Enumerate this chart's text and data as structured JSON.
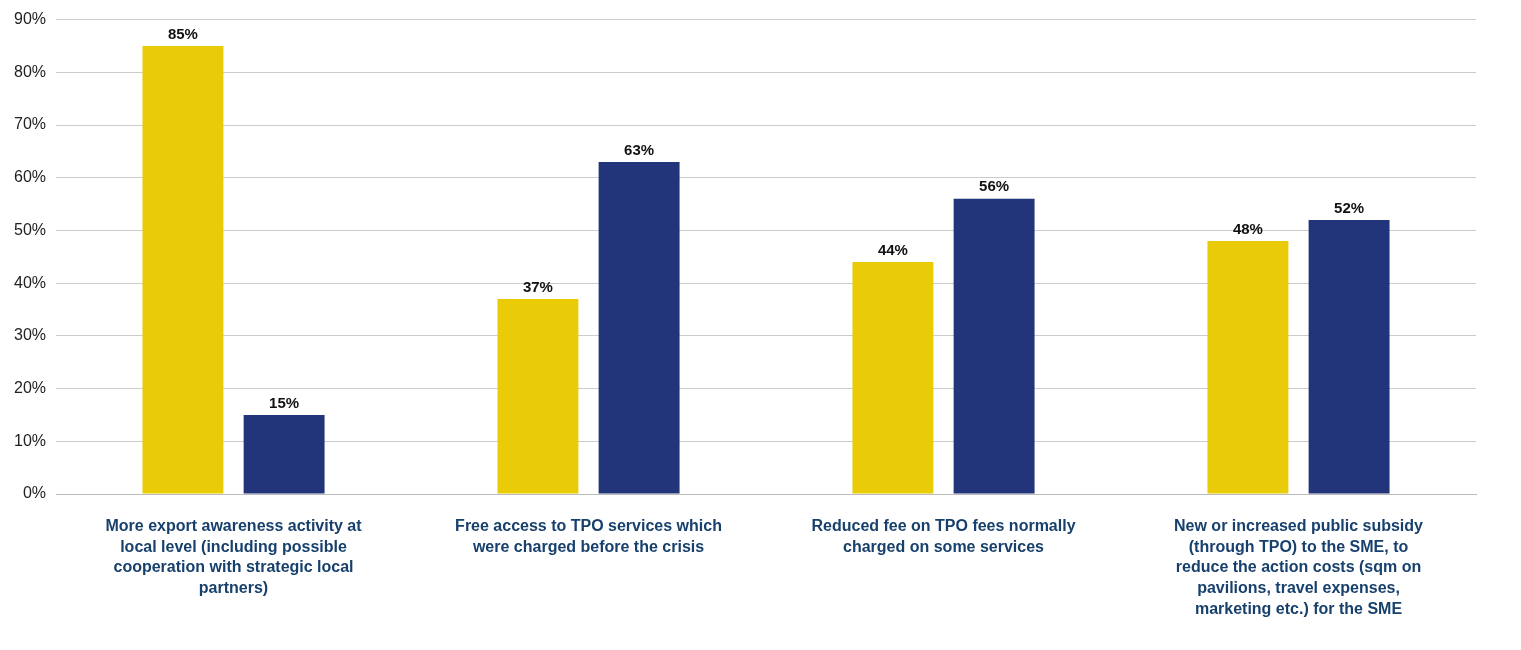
{
  "chart_data": {
    "type": "bar",
    "categories": [
      "More export awareness activity at local level (including possible cooperation with strategic local partners)",
      "Free access to TPO services which were charged before the crisis",
      "Reduced fee on TPO fees normally charged on some services",
      "New or increased public subsidy (through TPO) to the SME, to reduce the action costs (sqm on pavilions, travel expenses, marketing etc.) for the SME"
    ],
    "series": [
      {
        "color": "#e9cb08",
        "values": [
          85,
          37,
          44,
          48
        ],
        "value_labels": [
          "85%",
          "37%",
          "44%",
          "48%"
        ]
      },
      {
        "color": "#22347a",
        "values": [
          15,
          63,
          56,
          52
        ],
        "value_labels": [
          "15%",
          "63%",
          "56%",
          "52%"
        ]
      }
    ],
    "ylim": [
      0,
      90
    ],
    "yticks": [
      {
        "value": 0,
        "label": "0%"
      },
      {
        "value": 10,
        "label": "10%"
      },
      {
        "value": 20,
        "label": "20%"
      },
      {
        "value": 30,
        "label": "30%"
      },
      {
        "value": 40,
        "label": "40%"
      },
      {
        "value": 50,
        "label": "50%"
      },
      {
        "value": 60,
        "label": "60%"
      },
      {
        "value": 70,
        "label": "70%"
      },
      {
        "value": 80,
        "label": "80%"
      },
      {
        "value": 90,
        "label": "90%"
      }
    ],
    "grid": "y",
    "legend": false
  }
}
